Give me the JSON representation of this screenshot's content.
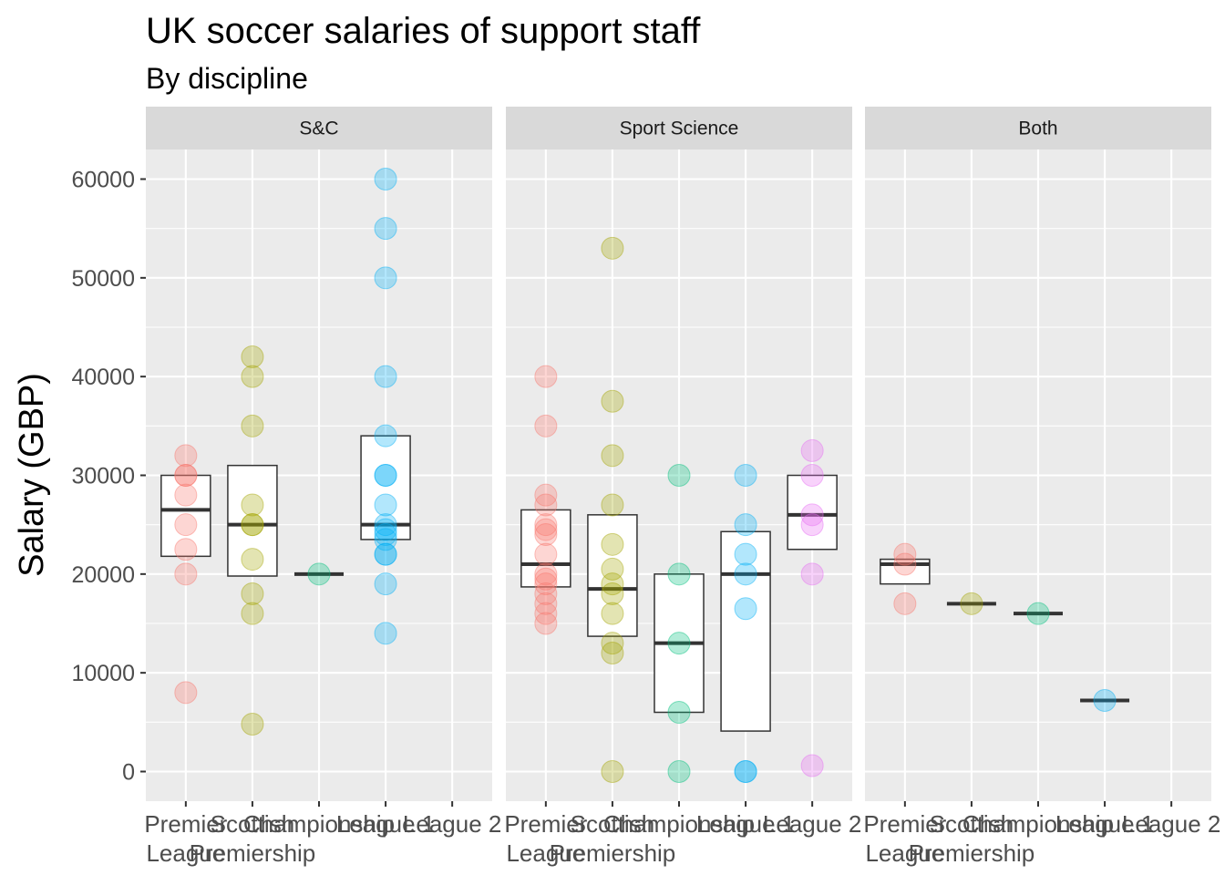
{
  "chart_data": {
    "type": "scatter",
    "overlay": "boxplot",
    "title": "UK soccer salaries of support staff",
    "subtitle": "By discipline",
    "xlabel": "",
    "ylabel": "Salary (GBP)",
    "ylim": [
      -3000,
      63000
    ],
    "yticks": [
      0,
      10000,
      20000,
      30000,
      40000,
      50000,
      60000
    ],
    "categories": [
      "Premier\nLeague",
      "Scottish\nPremiership",
      "Championship",
      "League 1",
      "League 2"
    ],
    "colors": {
      "Premier League": "#F8766D",
      "Scottish Premiership": "#A3A500",
      "Championship": "#00BF7D",
      "League 1": "#00B0F6",
      "League 2": "#E76BF3"
    },
    "grid": true,
    "legend": "none",
    "facets": [
      {
        "name": "S&C",
        "groups": [
          {
            "category": "Premier League",
            "values": [
              32000,
              30000,
              30000,
              28000,
              25000,
              22500,
              20000,
              8000
            ],
            "box": [
              21800,
              26500,
              30000
            ]
          },
          {
            "category": "Scottish Premiership",
            "values": [
              42000,
              40000,
              35000,
              27000,
              25000,
              25000,
              21500,
              18000,
              16000,
              4800
            ],
            "box": [
              19800,
              25000,
              31000
            ]
          },
          {
            "category": "Championship",
            "values": [
              20000
            ],
            "box": [
              20000,
              20000,
              20000
            ]
          },
          {
            "category": "League 1",
            "values": [
              60000,
              55000,
              50000,
              40000,
              34000,
              30000,
              30000,
              27000,
              25000,
              24500,
              24000,
              23500,
              22000,
              22000,
              19000,
              14000
            ],
            "box": [
              23500,
              25000,
              34000
            ]
          }
        ]
      },
      {
        "name": "Sport Science",
        "groups": [
          {
            "category": "Premier League",
            "values": [
              40000,
              35000,
              28000,
              27000,
              25000,
              24500,
              24000,
              22000,
              20000,
              19500,
              19000,
              18000,
              17000,
              16000,
              15000
            ],
            "box": [
              18700,
              21000,
              26500
            ]
          },
          {
            "category": "Scottish Premiership",
            "values": [
              53000,
              37500,
              32000,
              27000,
              23000,
              20500,
              19000,
              18000,
              16000,
              13000,
              12000,
              0
            ],
            "box": [
              13700,
              18500,
              26000
            ]
          },
          {
            "category": "Championship",
            "values": [
              30000,
              20000,
              13000,
              6000,
              0
            ],
            "box": [
              6000,
              13000,
              20000
            ]
          },
          {
            "category": "League 1",
            "values": [
              30000,
              25000,
              22000,
              20000,
              16500,
              0,
              0
            ],
            "box": [
              4100,
              20000,
              24300
            ]
          },
          {
            "category": "League 2",
            "values": [
              32500,
              30000,
              26000,
              25000,
              20000,
              600
            ],
            "box": [
              22500,
              26000,
              30000
            ]
          }
        ]
      },
      {
        "name": "Both",
        "groups": [
          {
            "category": "Premier League",
            "values": [
              22000,
              21000,
              17000
            ],
            "box": [
              19000,
              21000,
              21500
            ]
          },
          {
            "category": "Scottish Premiership",
            "values": [
              17000
            ],
            "box": [
              17000,
              17000,
              17000
            ]
          },
          {
            "category": "Championship",
            "values": [
              16000
            ],
            "box": [
              16000,
              16000,
              16000
            ]
          },
          {
            "category": "League 1",
            "values": [
              7200
            ],
            "box": [
              7200,
              7200,
              7200
            ]
          }
        ]
      }
    ]
  }
}
